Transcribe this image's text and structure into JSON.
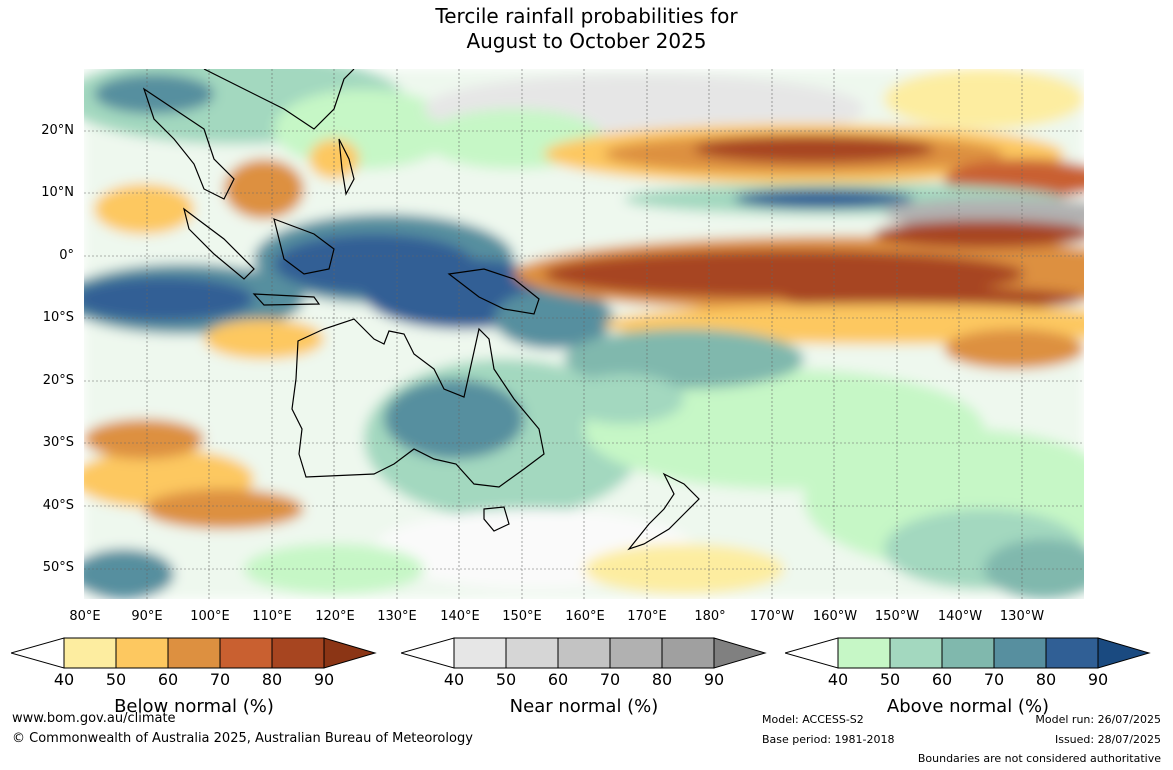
{
  "title_line1": "Tercile rainfall probabilities for",
  "title_line2": "August to October 2025",
  "lat_labels": [
    "20°N",
    "10°N",
    "0°",
    "10°S",
    "20°S",
    "30°S",
    "40°S",
    "50°S"
  ],
  "lon_labels": [
    "80°E",
    "90°E",
    "100°E",
    "110°E",
    "120°E",
    "130°E",
    "140°E",
    "150°E",
    "160°E",
    "170°E",
    "180°",
    "170°W",
    "160°W",
    "150°W",
    "140°W",
    "130°W"
  ],
  "legends": [
    {
      "title": "Below normal (%)",
      "ticks": [
        "40",
        "50",
        "60",
        "70",
        "80",
        "90"
      ],
      "colors": [
        "#fdeda0",
        "#fdc860",
        "#dd9040",
        "#c96030",
        "#a74520"
      ],
      "arrow": "#8b3515"
    },
    {
      "title": "Near normal (%)",
      "ticks": [
        "40",
        "50",
        "60",
        "70",
        "80",
        "90"
      ],
      "colors": [
        "#e6e6e6",
        "#d6d6d6",
        "#c3c3c3",
        "#b1b1b1",
        "#a0a0a0"
      ],
      "arrow": "#808080"
    },
    {
      "title": "Above normal (%)",
      "ticks": [
        "40",
        "50",
        "60",
        "70",
        "80",
        "90"
      ],
      "colors": [
        "#c6f7c6",
        "#a3d8bf",
        "#80b8ad",
        "#578f9f",
        "#305f95"
      ],
      "arrow": "#1a4a80"
    }
  ],
  "footer": {
    "website": "www.bom.gov.au/climate",
    "copyright": "© Commonwealth of Australia 2025, Australian Bureau of Meteorology",
    "model": "Model: ACCESS-S2",
    "base_period": "Base period: 1981-2018",
    "model_run": "Model run: 26/07/2025",
    "issued": "Issued: 28/07/2025",
    "boundaries": "Boundaries are not considered authoritative"
  },
  "colors": {
    "above_light": "#c6f7c6",
    "above_mid": "#80b8ad",
    "above_dark": "#305f95",
    "below_light": "#fdeda0",
    "below_mid": "#dd9040",
    "below_dark": "#a74520",
    "near_light": "#e6e6e6",
    "near_mid": "#c3c3c3"
  }
}
